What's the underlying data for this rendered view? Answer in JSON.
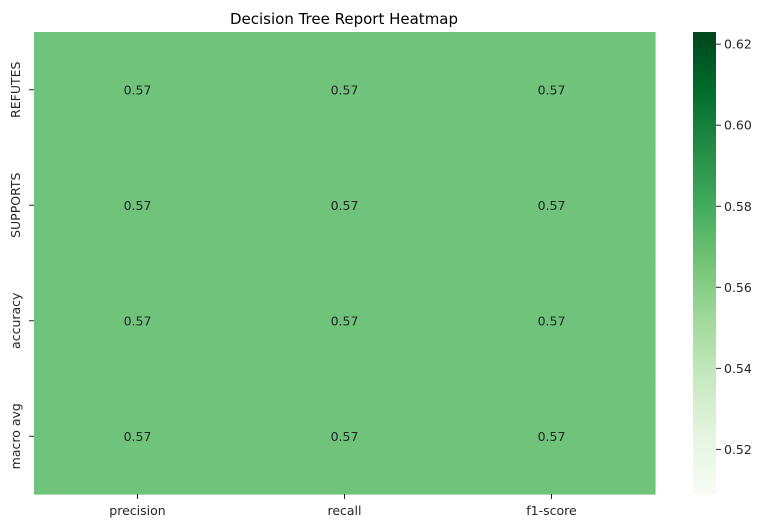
{
  "chart_data": {
    "type": "heatmap",
    "title": "Decision Tree Report Heatmap",
    "xlabel": "",
    "ylabel": "",
    "x_categories": [
      "precision",
      "recall",
      "f1-score"
    ],
    "y_categories": [
      "REFUTES",
      "SUPPORTS",
      "accuracy",
      "macro avg"
    ],
    "values": [
      [
        0.57,
        0.57,
        0.57
      ],
      [
        0.57,
        0.57,
        0.57
      ],
      [
        0.57,
        0.57,
        0.57
      ],
      [
        0.57,
        0.57,
        0.57
      ]
    ],
    "cell_labels": [
      [
        "0.57",
        "0.57",
        "0.57"
      ],
      [
        "0.57",
        "0.57",
        "0.57"
      ],
      [
        "0.57",
        "0.57",
        "0.57"
      ],
      [
        "0.57",
        "0.57",
        "0.57"
      ]
    ],
    "colormap": "Greens",
    "cell_color": "#6fc37a",
    "colorbar": {
      "range": [
        0.509,
        0.623
      ],
      "ticks": [
        0.52,
        0.54,
        0.56,
        0.58,
        0.6,
        0.62
      ],
      "tick_labels": [
        "0.52",
        "0.54",
        "0.56",
        "0.58",
        "0.60",
        "0.62"
      ],
      "color_stops": [
        "#f7fcf5",
        "#e5f5e0",
        "#c7e9c0",
        "#a1d99b",
        "#74c476",
        "#41ab5d",
        "#238b45",
        "#006d2c",
        "#00441b"
      ]
    },
    "grid": false,
    "legend": "colorbar-right"
  }
}
